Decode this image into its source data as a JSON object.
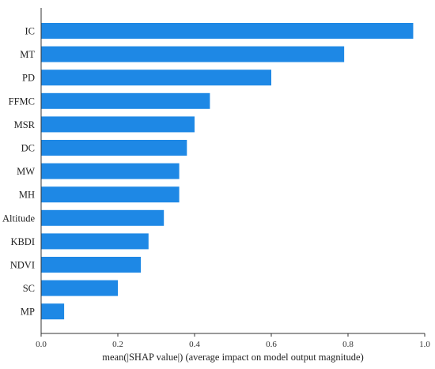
{
  "chart_data": {
    "type": "bar",
    "orientation": "horizontal",
    "categories": [
      "IC",
      "MT",
      "PD",
      "FFMC",
      "MSR",
      "DC",
      "MW",
      "MH",
      "Altitude",
      "KBDI",
      "NDVI",
      "SC",
      "MP"
    ],
    "values": [
      0.97,
      0.79,
      0.6,
      0.44,
      0.4,
      0.38,
      0.36,
      0.36,
      0.32,
      0.28,
      0.26,
      0.2,
      0.06
    ],
    "xlabel": "mean(|SHAP value|) (average impact on model output magnitude)",
    "ylabel": "",
    "title": "",
    "xlim": [
      0,
      1.0
    ],
    "xticks": [
      0.0,
      0.2,
      0.4,
      0.6,
      0.8,
      1.0
    ],
    "xtick_labels": [
      "0.0",
      "0.2",
      "0.4",
      "0.6",
      "0.8",
      "1.0"
    ],
    "grid": false,
    "bar_color": "#1E88E5",
    "axis_color": "#333333"
  }
}
